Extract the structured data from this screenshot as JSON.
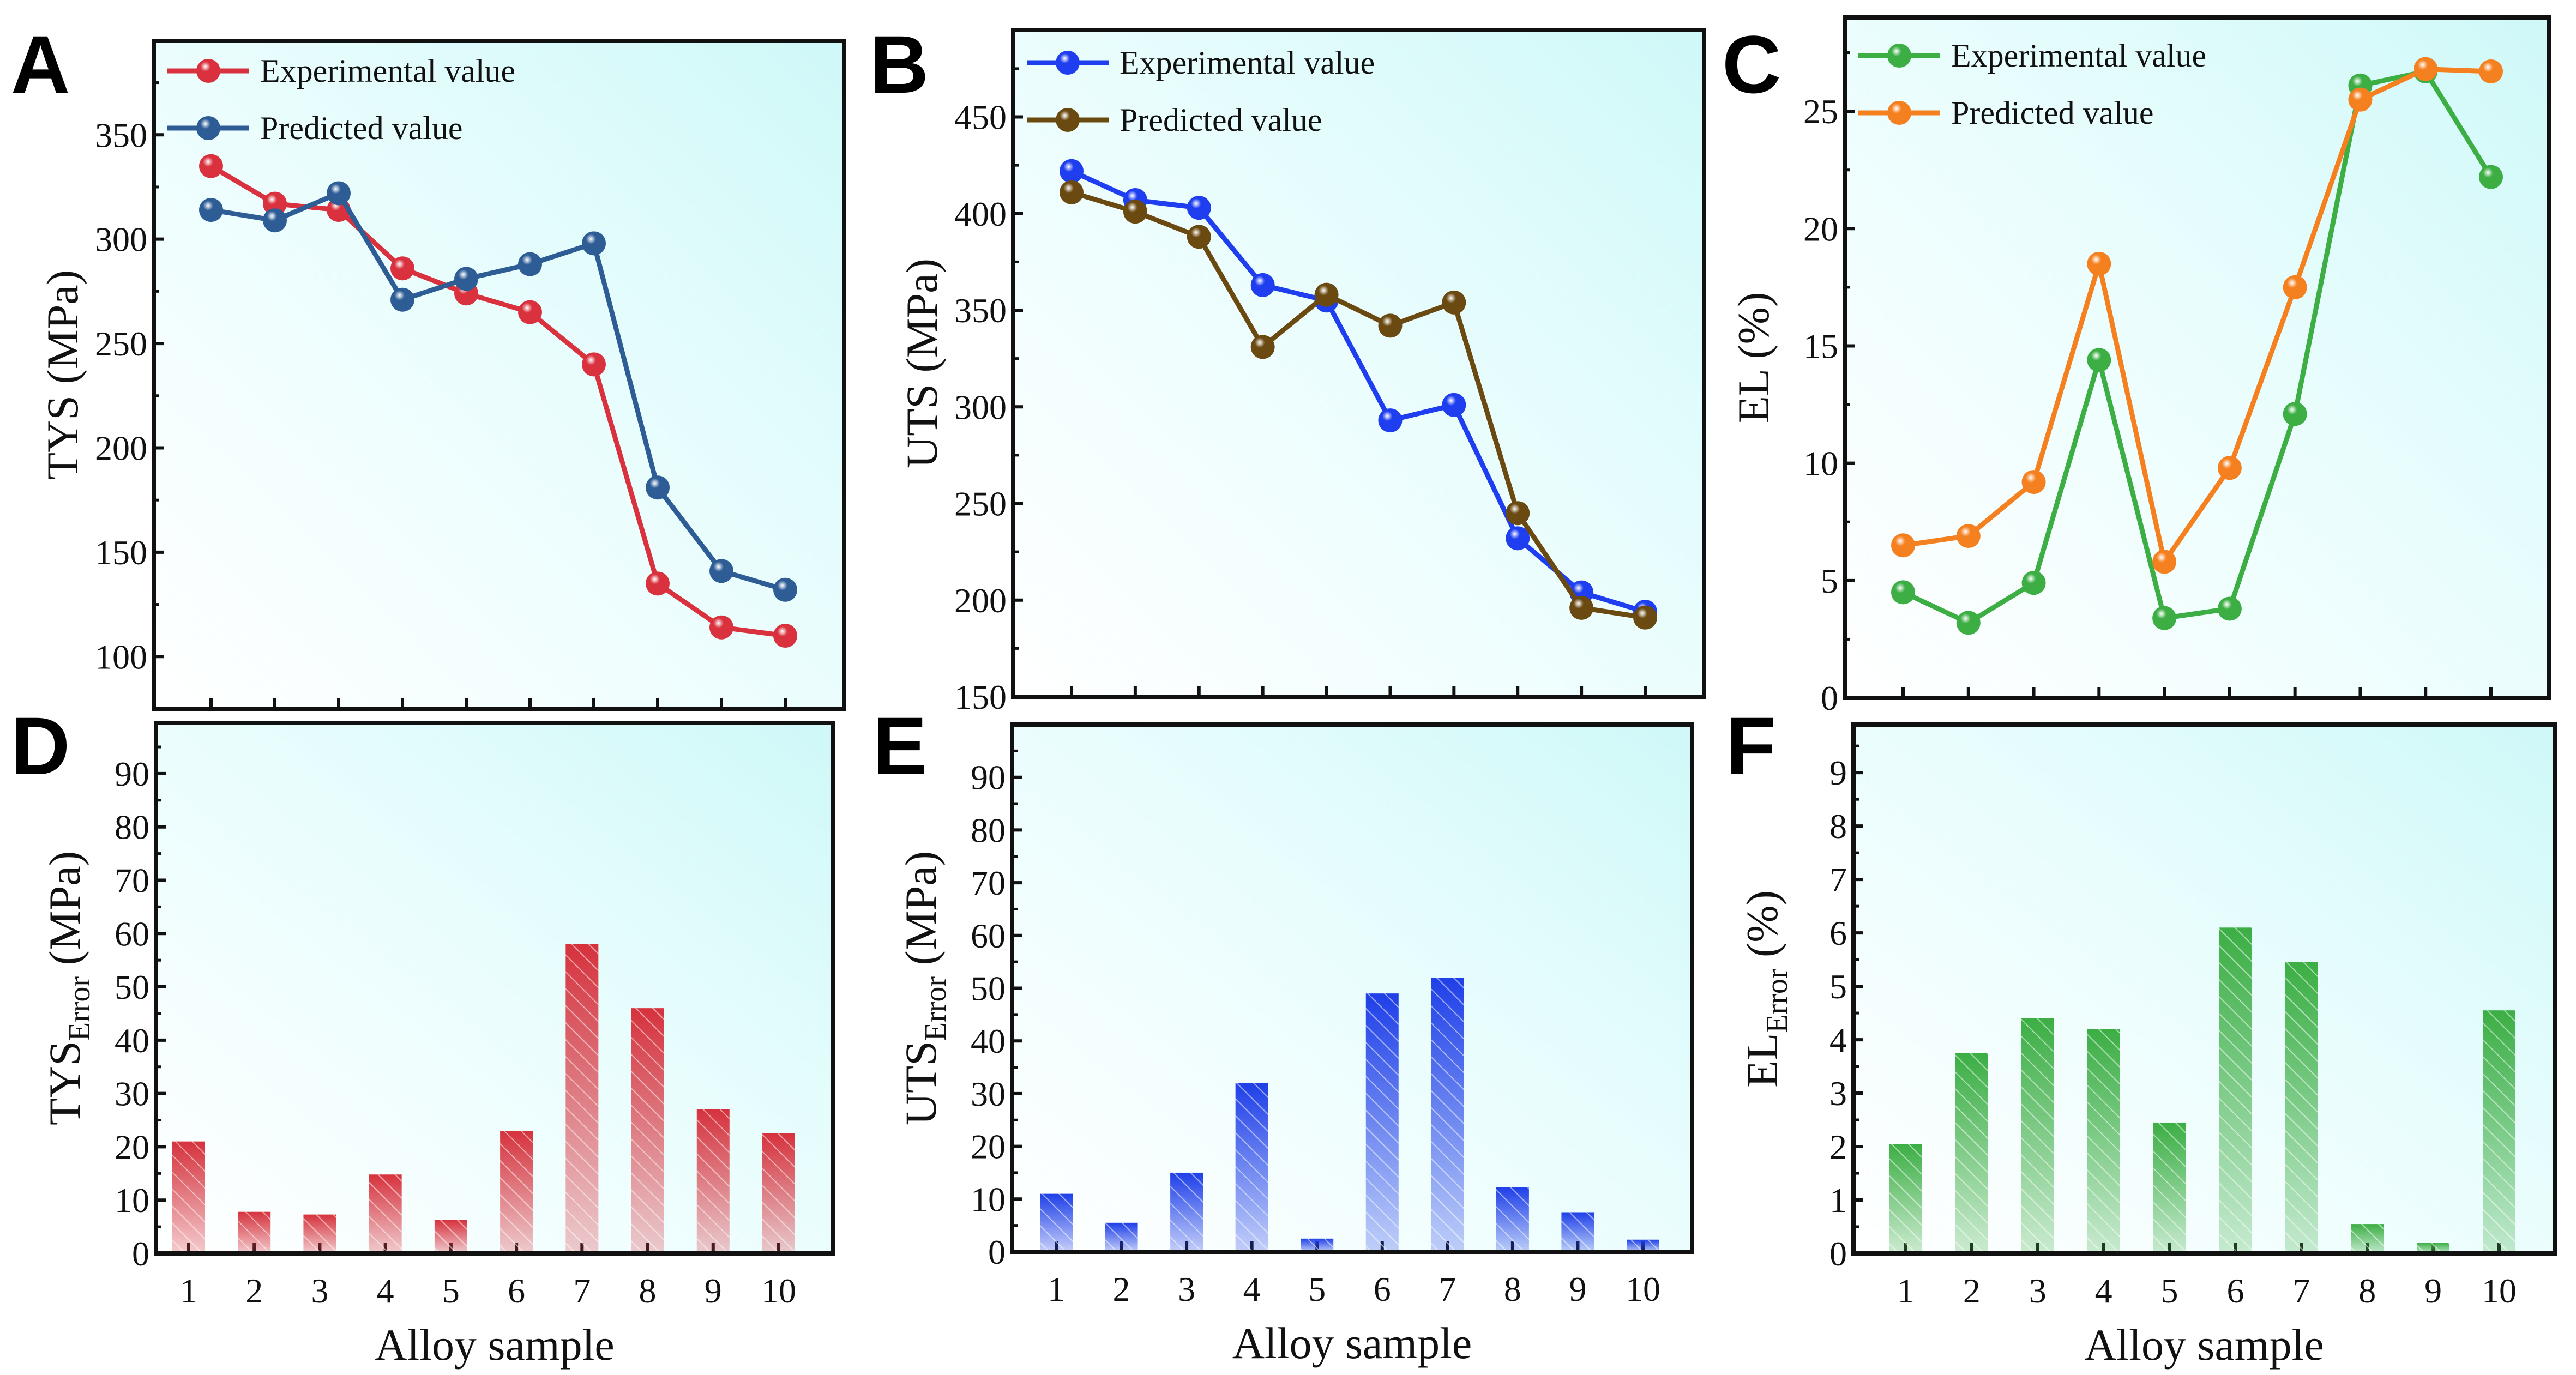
{
  "chart_data": [
    {
      "panel": "A",
      "type": "line",
      "xlabel": "Alloy sample",
      "ylabel": "TYS (MPa)",
      "x": [
        1,
        2,
        3,
        4,
        5,
        6,
        7,
        8,
        9,
        10
      ],
      "ylim": [
        75,
        395
      ],
      "yticks": [
        100,
        150,
        200,
        250,
        300,
        350
      ],
      "series": [
        {
          "name": "Experimental value",
          "color": "#d9323e",
          "values": [
            335,
            317,
            314,
            286,
            274,
            265,
            240,
            135,
            114,
            110
          ]
        },
        {
          "name": "Predicted value",
          "color": "#2e5d96",
          "values": [
            314,
            309,
            322,
            271,
            281,
            288,
            298,
            181,
            141,
            132
          ]
        }
      ]
    },
    {
      "panel": "B",
      "type": "line",
      "xlabel": "Alloy sample",
      "ylabel": "UTS (MPa)",
      "x": [
        1,
        2,
        3,
        4,
        5,
        6,
        7,
        8,
        9,
        10
      ],
      "ylim": [
        150,
        495
      ],
      "yticks": [
        150,
        200,
        250,
        300,
        350,
        400,
        450
      ],
      "series": [
        {
          "name": "Experimental value",
          "color": "#1e3ef0",
          "values": [
            422,
            407,
            403,
            363,
            355,
            293,
            301,
            232,
            204,
            194
          ]
        },
        {
          "name": "Predicted value",
          "color": "#6b4a12",
          "values": [
            411,
            401,
            388,
            331,
            358,
            342,
            354,
            245,
            196,
            191
          ]
        }
      ]
    },
    {
      "panel": "C",
      "type": "line",
      "xlabel": "Alloy sample",
      "ylabel": "EL (%)",
      "x": [
        1,
        2,
        3,
        4,
        5,
        6,
        7,
        8,
        9,
        10
      ],
      "ylim": [
        0,
        29
      ],
      "yticks": [
        0,
        5,
        10,
        15,
        20,
        25
      ],
      "series": [
        {
          "name": "Experimental value",
          "color": "#3cae44",
          "values": [
            4.5,
            3.2,
            4.9,
            14.4,
            3.4,
            3.8,
            12.1,
            26.1,
            26.7,
            22.2
          ]
        },
        {
          "name": "Predicted value",
          "color": "#f5801f",
          "values": [
            6.5,
            6.9,
            9.2,
            18.5,
            5.8,
            9.8,
            17.5,
            25.5,
            26.8,
            26.7
          ]
        }
      ]
    },
    {
      "panel": "D",
      "type": "bar",
      "xlabel": "Alloy sample",
      "ylabel_main": "TYS",
      "ylabel_sub": "Error",
      "ylabel_unit": " (MPa)",
      "categories": [
        "1",
        "2",
        "3",
        "4",
        "5",
        "6",
        "7",
        "8",
        "9",
        "10"
      ],
      "ylim": [
        0,
        99.5
      ],
      "yticks": [
        0,
        10,
        20,
        30,
        40,
        50,
        60,
        70,
        80,
        90
      ],
      "color": "#d6323d",
      "values": [
        21,
        7.8,
        7.3,
        14.8,
        6.3,
        23,
        58,
        46,
        27,
        22.5
      ]
    },
    {
      "panel": "E",
      "type": "bar",
      "xlabel": "Alloy sample",
      "ylabel_main": "UTS",
      "ylabel_sub": "Error",
      "ylabel_unit": " (MPa)",
      "categories": [
        "1",
        "2",
        "3",
        "4",
        "5",
        "6",
        "7",
        "8",
        "9",
        "10"
      ],
      "ylim": [
        0,
        100
      ],
      "yticks": [
        0,
        10,
        20,
        30,
        40,
        50,
        60,
        70,
        80,
        90
      ],
      "color": "#1f3fe8",
      "values": [
        11,
        5.5,
        15,
        32,
        2.5,
        49,
        52,
        12.2,
        7.5,
        2.3
      ]
    },
    {
      "panel": "F",
      "type": "bar",
      "xlabel": "Alloy sample",
      "ylabel_main": "EL",
      "ylabel_sub": "Error",
      "ylabel_unit": " (%)",
      "categories": [
        "1",
        "2",
        "3",
        "4",
        "5",
        "6",
        "7",
        "8",
        "9",
        "10"
      ],
      "ylim": [
        0,
        9.9
      ],
      "yticks": [
        0,
        1,
        2,
        3,
        4,
        5,
        6,
        7,
        8,
        9
      ],
      "color": "#3cae44",
      "values": [
        2.05,
        3.75,
        4.4,
        4.2,
        2.45,
        6.1,
        5.45,
        0.55,
        0.2,
        4.55
      ]
    }
  ]
}
